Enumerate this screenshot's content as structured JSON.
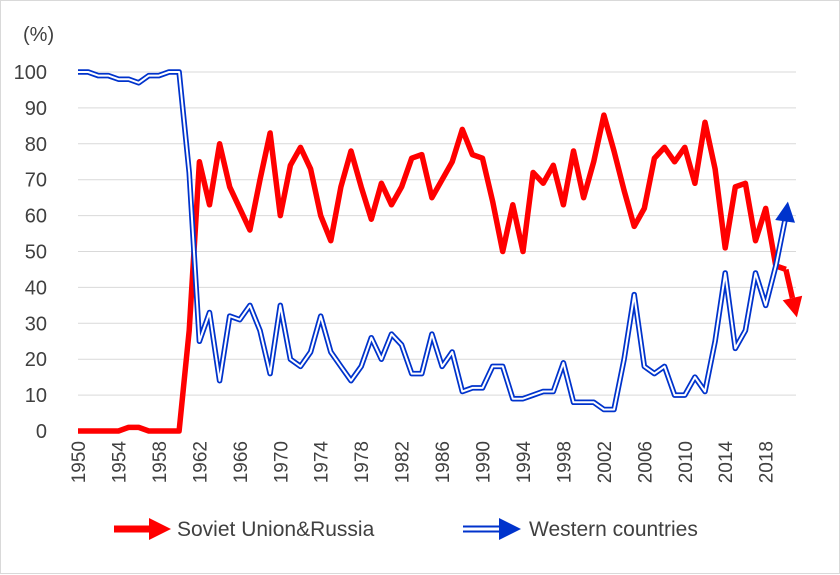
{
  "chart_data": {
    "type": "line",
    "unit_label": "(%)",
    "ylim": [
      0,
      100
    ],
    "y_ticks": [
      0,
      10,
      20,
      30,
      40,
      50,
      60,
      70,
      80,
      90,
      100
    ],
    "x_ticks": [
      "1950",
      "1954",
      "1958",
      "1962",
      "1966",
      "1970",
      "1974",
      "1978",
      "1982",
      "1986",
      "1990",
      "1994",
      "1998",
      "2002",
      "2006",
      "2010",
      "2014",
      "2018"
    ],
    "grid": true,
    "legend_position": "bottom",
    "x": [
      1950,
      1951,
      1952,
      1953,
      1954,
      1955,
      1956,
      1957,
      1958,
      1959,
      1960,
      1961,
      1962,
      1963,
      1964,
      1965,
      1966,
      1967,
      1968,
      1969,
      1970,
      1971,
      1972,
      1973,
      1974,
      1975,
      1976,
      1977,
      1978,
      1979,
      1980,
      1981,
      1982,
      1983,
      1984,
      1985,
      1986,
      1987,
      1988,
      1989,
      1990,
      1991,
      1992,
      1993,
      1994,
      1995,
      1996,
      1997,
      1998,
      1999,
      2000,
      2001,
      2002,
      2003,
      2004,
      2005,
      2006,
      2007,
      2008,
      2009,
      2010,
      2011,
      2012,
      2013,
      2014,
      2015,
      2016,
      2017,
      2018,
      2019,
      2020
    ],
    "series": [
      {
        "name": "Soviet Union&Russia",
        "color": "#ff0000",
        "style": "thick-solid",
        "arrow": "down",
        "values": [
          0,
          0,
          0,
          0,
          0,
          1,
          1,
          0,
          0,
          0,
          0,
          28,
          75,
          63,
          80,
          68,
          62,
          56,
          70,
          83,
          60,
          74,
          79,
          73,
          60,
          53,
          68,
          78,
          68,
          59,
          69,
          63,
          68,
          76,
          77,
          65,
          70,
          75,
          84,
          77,
          76,
          64,
          50,
          63,
          50,
          72,
          69,
          74,
          63,
          78,
          65,
          75,
          88,
          78,
          67,
          57,
          62,
          76,
          79,
          75,
          79,
          69,
          86,
          73,
          51,
          68,
          69,
          53,
          62,
          46,
          45
        ]
      },
      {
        "name": "Western countries",
        "color": "#0033cc",
        "style": "double-line",
        "arrow": "up",
        "values": [
          100,
          100,
          99,
          99,
          98,
          98,
          97,
          99,
          99,
          100,
          100,
          72,
          25,
          33,
          14,
          32,
          31,
          35,
          28,
          16,
          35,
          20,
          18,
          22,
          32,
          22,
          18,
          14,
          18,
          26,
          20,
          27,
          24,
          16,
          16,
          27,
          18,
          22,
          11,
          12,
          12,
          18,
          18,
          9,
          9,
          10,
          11,
          11,
          19,
          8,
          8,
          8,
          6,
          6,
          20,
          38,
          18,
          16,
          18,
          10,
          10,
          15,
          11,
          25,
          44,
          23,
          28,
          44,
          35,
          46,
          60
        ]
      }
    ]
  }
}
